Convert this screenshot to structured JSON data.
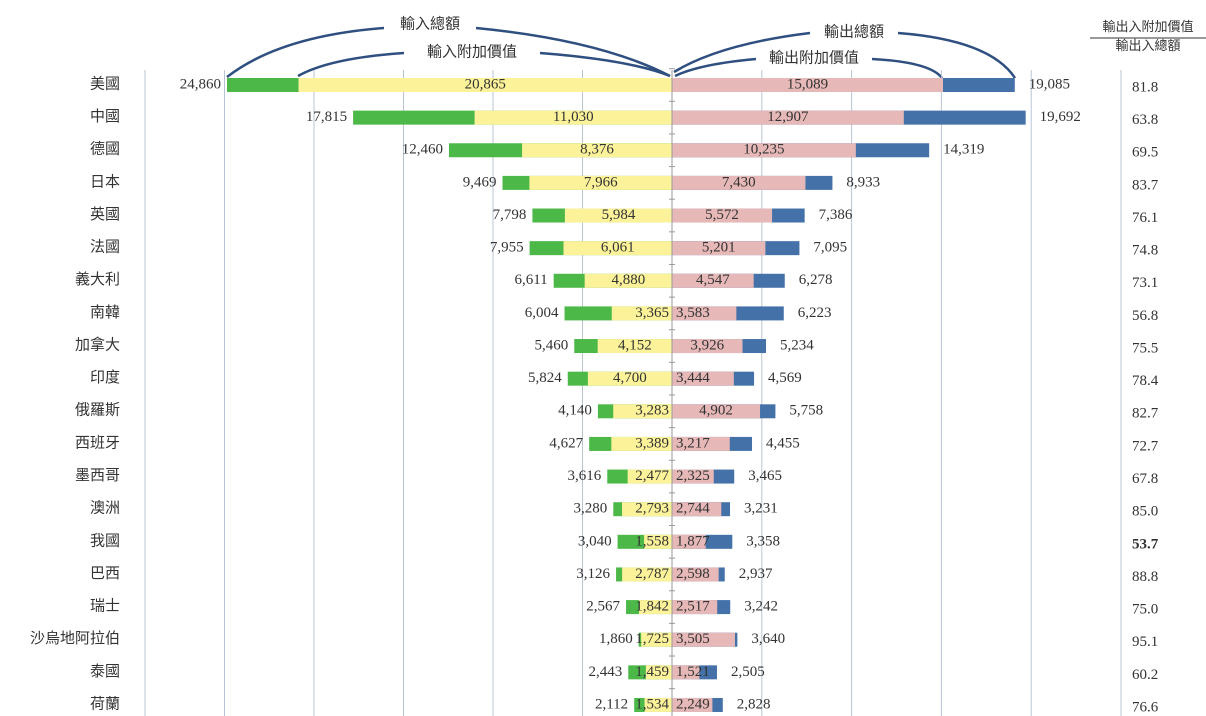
{
  "chart_data": {
    "type": "butterfly-bar",
    "categories": [
      "美國",
      "中國",
      "德國",
      "日本",
      "英國",
      "法國",
      "義大利",
      "南韓",
      "加拿大",
      "印度",
      "俄羅斯",
      "西班牙",
      "墨西哥",
      "澳洲",
      "我國",
      "巴西",
      "瑞士",
      "沙烏地阿拉伯",
      "泰國",
      "荷蘭"
    ],
    "series": [
      {
        "name": "輸入總額",
        "side": "left",
        "color": "#4cb848",
        "label_color": "#e8403a",
        "values": [
          24860,
          17815,
          12460,
          9469,
          7798,
          7955,
          6611,
          6004,
          5460,
          5824,
          4140,
          4627,
          3616,
          3280,
          3040,
          3126,
          2567,
          1860,
          2443,
          2112
        ],
        "value_labels": [
          "24,860",
          "17,815",
          "12,460",
          "9,469",
          "7,798",
          "7,955",
          "6,611",
          "6,004",
          "5,460",
          "5,824",
          "4,140",
          "4,627",
          "3,616",
          "3,280",
          "3,040",
          "3,126",
          "2,567",
          "1,860",
          "2,443",
          "2,112"
        ]
      },
      {
        "name": "輸入附加價值",
        "side": "left",
        "color": "#fbf29a",
        "label_color": "#e8403a",
        "values": [
          20865,
          11030,
          8376,
          7966,
          5984,
          6061,
          4880,
          3365,
          4152,
          4700,
          3283,
          3389,
          2477,
          2793,
          1558,
          2787,
          1842,
          1725,
          1459,
          1534
        ],
        "value_labels": [
          "20,865",
          "11,030",
          "8,376",
          "7,966",
          "5,984",
          "6,061",
          "4,880",
          "3,365",
          "4,152",
          "4,700",
          "3,283",
          "3,389",
          "2,477",
          "2,793",
          "1,558",
          "2,787",
          "1,842",
          "1,725",
          "1,459",
          "1,534"
        ]
      },
      {
        "name": "輸出附加價值",
        "side": "right",
        "color": "#e6b9b8",
        "label_color": "#333333",
        "name_color": "#e8403a",
        "values": [
          15089,
          12907,
          10235,
          7430,
          5572,
          5201,
          4547,
          3583,
          3926,
          3444,
          4902,
          3217,
          2325,
          2744,
          1877,
          2598,
          2517,
          3505,
          1521,
          2249
        ],
        "value_labels": [
          "15,089",
          "12,907",
          "10,235",
          "7,430",
          "5,572",
          "5,201",
          "4,547",
          "3,583",
          "3,926",
          "3,444",
          "4,902",
          "3,217",
          "2,325",
          "2,744",
          "1,877",
          "2,598",
          "2,517",
          "3,505",
          "1,521",
          "2,249"
        ]
      },
      {
        "name": "輸出總額",
        "side": "right",
        "color": "#4472a8",
        "label_color": "#333333",
        "values": [
          19085,
          19692,
          14319,
          8933,
          7386,
          7095,
          6278,
          6223,
          5234,
          4569,
          5758,
          4455,
          3465,
          3231,
          3358,
          2937,
          3242,
          3640,
          2505,
          2828
        ],
        "value_labels": [
          "19,085",
          "19,692",
          "14,319",
          "8,933",
          "7,386",
          "7,095",
          "6,278",
          "6,223",
          "5,234",
          "4,569",
          "5,758",
          "4,455",
          "3,465",
          "3,231",
          "3,358",
          "2,937",
          "3,242",
          "3,640",
          "2,505",
          "2,828"
        ]
      }
    ],
    "ratio": {
      "numerator_label": "輸出入附加價值",
      "denominator_label": "輸出入總額",
      "values": [
        81.8,
        63.8,
        69.5,
        83.7,
        76.1,
        74.8,
        73.1,
        56.8,
        75.5,
        78.4,
        82.7,
        72.7,
        67.8,
        85.0,
        53.7,
        88.8,
        75.0,
        95.1,
        60.2,
        76.6
      ],
      "value_labels": [
        "81.8",
        "63.8",
        "69.5",
        "83.7",
        "76.1",
        "74.8",
        "73.1",
        "56.8",
        "75.5",
        "78.4",
        "82.7",
        "72.7",
        "67.8",
        "85.0",
        "53.7",
        "88.8",
        "75.0",
        "95.1",
        "60.2",
        "76.6"
      ],
      "highlight": {
        "category": "我國",
        "color": "#2e9e5b"
      }
    },
    "xlim_left": [
      30000,
      0
    ],
    "xticks_left": [
      25000,
      20000,
      15000,
      10000,
      5000
    ],
    "xlim_right": [
      0,
      25000
    ],
    "xticks_right": [
      5000,
      10000,
      15000,
      20000,
      25000
    ],
    "grid": true
  }
}
